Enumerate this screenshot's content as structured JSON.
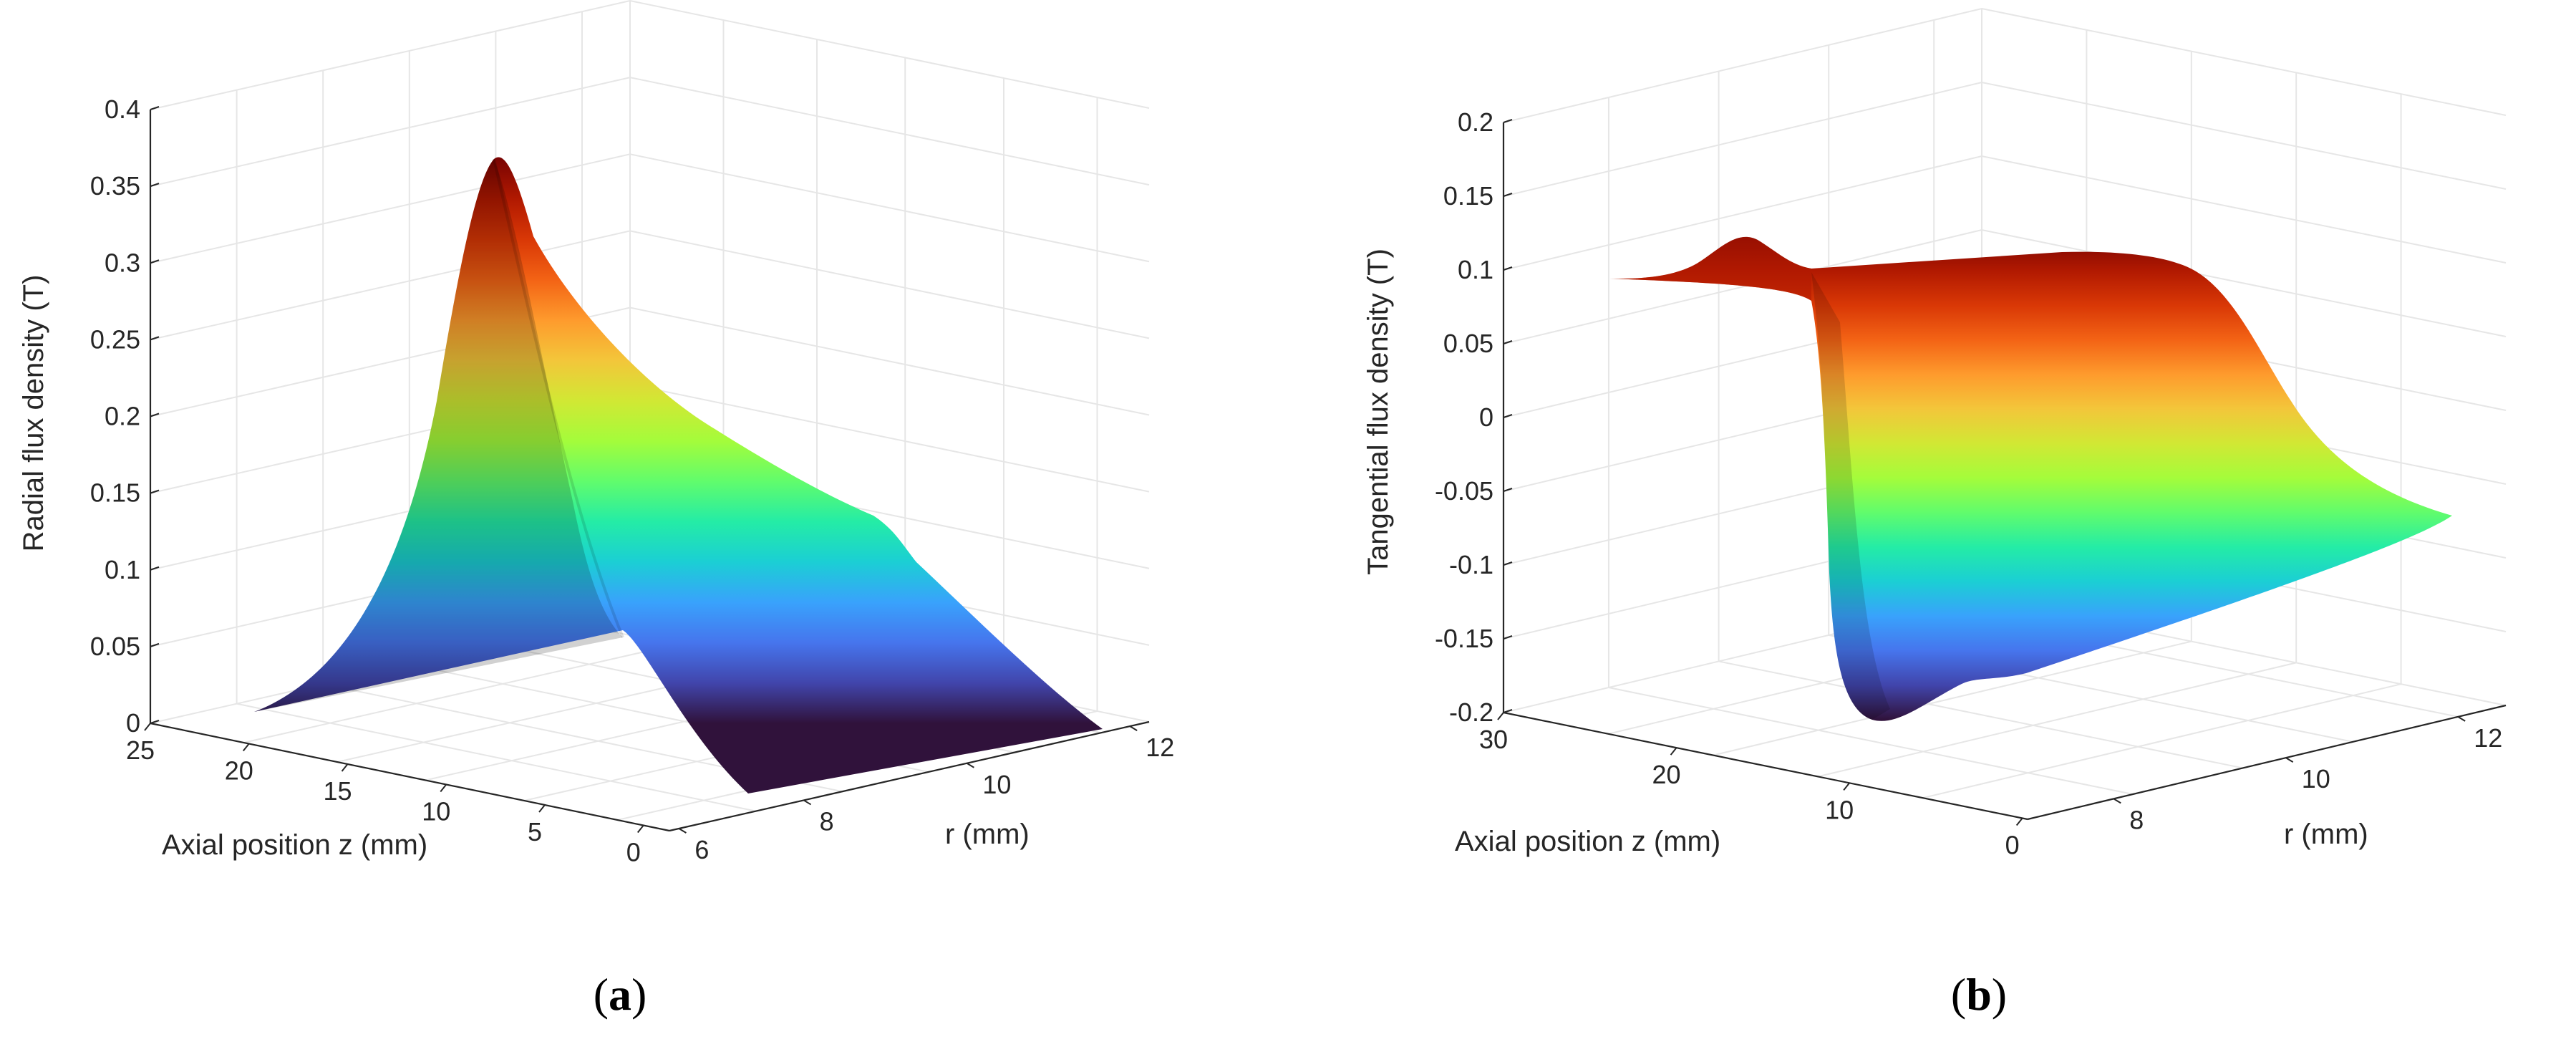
{
  "chart_data": [
    {
      "type": "surface3d",
      "panel_label": "a",
      "zlabel": "Radial flux density (T)",
      "xlabel": "Axial position z (mm)",
      "ylabel": "r (mm)",
      "zlim": [
        0,
        0.4
      ],
      "z_ticks": [
        "0",
        "0.05",
        "0.1",
        "0.15",
        "0.2",
        "0.25",
        "0.3",
        "0.35",
        "0.4"
      ],
      "x_ticks": [
        "25",
        "20",
        "15",
        "10",
        "5",
        "0"
      ],
      "y_ticks": [
        "6",
        "8",
        "10",
        "12"
      ],
      "grid": true,
      "colormap": "turbo",
      "surface": {
        "z_mm": [
          22,
          17,
          13,
          10.5,
          9,
          7.5,
          6,
          4,
          2,
          0
        ],
        "r_start_value": [
          0.0,
          0.07,
          0.23,
          0.37,
          0.3,
          0.22,
          0.17,
          0.145,
          0.13,
          0.12
        ],
        "r_end_value": 0.0
      }
    },
    {
      "type": "surface3d",
      "panel_label": "b",
      "zlabel": "Tangential flux density (T)",
      "xlabel": "Axial position z (mm)",
      "ylabel": "r (mm)",
      "zlim": [
        -0.2,
        0.2
      ],
      "z_ticks": [
        "-0.2",
        "-0.15",
        "-0.1",
        "-0.05",
        "0",
        "0.05",
        "0.1",
        "0.15",
        "0.2"
      ],
      "x_ticks": [
        "30",
        "20",
        "10",
        "0"
      ],
      "y_ticks": [
        "8",
        "10",
        "12"
      ],
      "grid": true,
      "colormap": "turbo",
      "surface": {
        "z_mm": [
          30,
          25,
          22,
          20,
          19,
          18,
          17,
          16,
          15,
          13,
          10,
          5,
          0
        ],
        "back_value": [
          0.1,
          0.1,
          0.11,
          0.12,
          0.11,
          0.105,
          0.105,
          0.11,
          0.115,
          0.115,
          0.11,
          0.105,
          0.1
        ],
        "front_value": [
          null,
          null,
          null,
          null,
          -0.1,
          -0.19,
          -0.2,
          -0.185,
          -0.18,
          -0.17,
          -0.15,
          -0.12,
          -0.1
        ]
      }
    }
  ],
  "colors": {
    "turbo": [
      "#30123b",
      "#4145ab",
      "#4675ed",
      "#39a2fc",
      "#1bcfd4",
      "#24eca6",
      "#61fc6c",
      "#a4fc3b",
      "#d1e834",
      "#f3c63a",
      "#fe9b2d",
      "#f36315",
      "#d93806",
      "#b11901",
      "#7a0402"
    ],
    "axis": "#262626",
    "grid": "#e6e6e6"
  }
}
